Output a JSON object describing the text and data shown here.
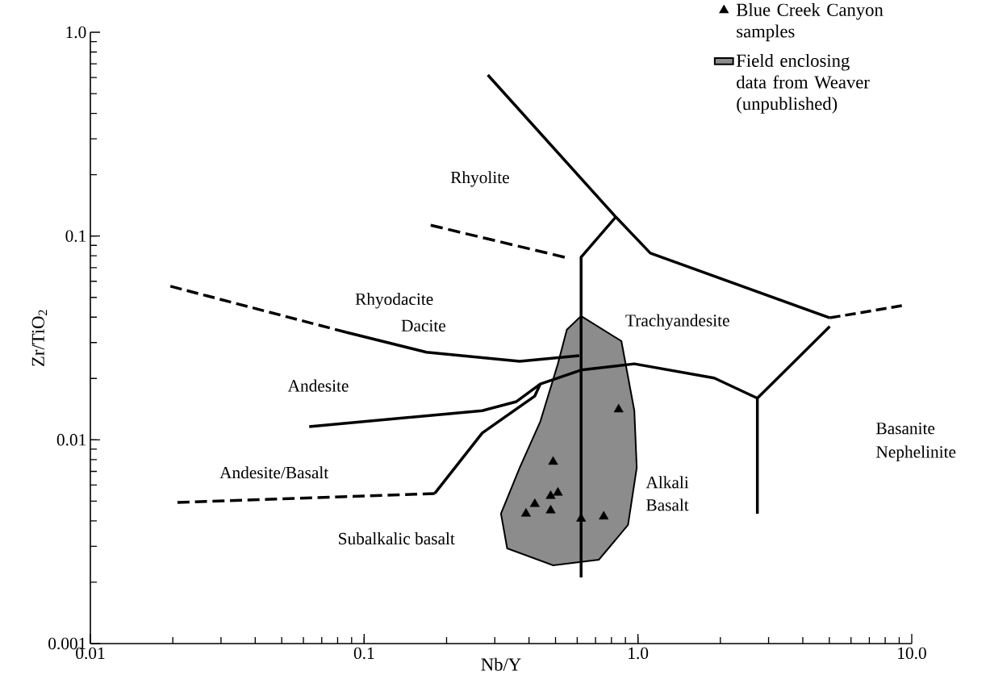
{
  "chart_data": {
    "type": "scatter",
    "xlabel": "Nb/Y",
    "ylabel": "Zr/TiO$_{2}$",
    "log": "xy",
    "legend": "top right",
    "xlim": [
      0.01,
      10
    ],
    "ylim": [
      0.001,
      1
    ],
    "xticks": [
      0.01,
      0.1,
      {
        "value": 1,
        "label": "1.0"
      },
      {
        "value": 10,
        "label": "10.0"
      }
    ],
    "yticks": [
      0.001,
      0.01,
      0.1,
      {
        "value": 1,
        "label": "1.0"
      }
    ],
    "series": [
      {
        "type": "area",
        "name": "Field enclosing data from Weaver (unpublished)",
        "color": "#8c8c8c",
        "x": [
          0.62,
          0.87,
          0.97,
          0.99,
          0.92,
          0.72,
          0.49,
          0.333,
          0.316,
          0.37,
          0.44,
          0.51,
          0.55
        ],
        "values": [
          0.0405,
          0.0305,
          0.0139,
          0.0073,
          0.00382,
          0.00258,
          0.00242,
          0.00293,
          0.00434,
          0.0073,
          0.0123,
          0.0236,
          0.0347
        ]
      },
      {
        "type": "line",
        "color": "#000000",
        "line_style": "solid",
        "x": [
          0.283,
          0.83,
          1.11,
          5.02
        ],
        "values": [
          0.617,
          0.124,
          0.0824,
          0.0397
        ]
      },
      {
        "type": "line",
        "color": "#000000",
        "line_style": "dashed",
        "x": [
          5.02,
          9.2
        ],
        "values": [
          0.0397,
          0.0455
        ]
      },
      {
        "type": "line",
        "color": "#000000",
        "line_style": "solid",
        "x": [
          0.83,
          0.62,
          0.62
        ],
        "values": [
          0.124,
          0.0787,
          0.00211
        ]
      },
      {
        "type": "line",
        "color": "#000000",
        "line_style": "dashed",
        "x": [
          0.175,
          0.54
        ],
        "values": [
          0.113,
          0.0787
        ]
      },
      {
        "type": "line",
        "color": "#000000",
        "line_style": "solid",
        "x": [
          5.02,
          2.73,
          2.73
        ],
        "values": [
          0.036,
          0.016,
          0.00434
        ]
      },
      {
        "type": "line",
        "color": "#000000",
        "line_style": "solid",
        "x": [
          2.73,
          1.9,
          0.97,
          0.62,
          0.44,
          0.36,
          0.27,
          0.063
        ],
        "values": [
          0.016,
          0.0201,
          0.0236,
          0.022,
          0.0188,
          0.0154,
          0.0139,
          0.0116
        ]
      },
      {
        "type": "line",
        "color": "#000000",
        "line_style": "solid",
        "x": [
          0.181,
          0.27,
          0.42,
          0.44
        ],
        "values": [
          0.00545,
          0.0108,
          0.0164,
          0.0188
        ]
      },
      {
        "type": "line",
        "color": "#000000",
        "line_style": "dashed",
        "x": [
          0.0196,
          0.086
        ],
        "values": [
          0.0567,
          0.0337
        ]
      },
      {
        "type": "line",
        "color": "#000000",
        "line_style": "solid",
        "x": [
          0.086,
          0.169,
          0.37,
          0.61
        ],
        "values": [
          0.0337,
          0.0269,
          0.0243,
          0.0259
        ]
      },
      {
        "type": "line",
        "color": "#000000",
        "line_style": "dashed",
        "x": [
          0.0208,
          0.181
        ],
        "values": [
          0.00493,
          0.00545
        ]
      },
      {
        "name": "Blue Creek Canyon samples",
        "marker": "triangle",
        "color": "#000000",
        "x": [
          0.85,
          0.49,
          0.42,
          0.39,
          0.48,
          0.51,
          0.48,
          0.62,
          0.75
        ],
        "values": [
          0.0141,
          0.0078,
          0.00484,
          0.00434,
          0.0053,
          0.0055,
          0.0045,
          0.0041,
          0.0042
        ]
      }
    ],
    "annotations": [
      "Rhyolite",
      "Rhyodacite",
      "Dacite",
      "Andesite",
      "Andesite/Basalt",
      "Subalkalic basalt",
      "Trachyandesite",
      "Alkali",
      "Basalt",
      "Basanite",
      "Nephelinite"
    ]
  }
}
